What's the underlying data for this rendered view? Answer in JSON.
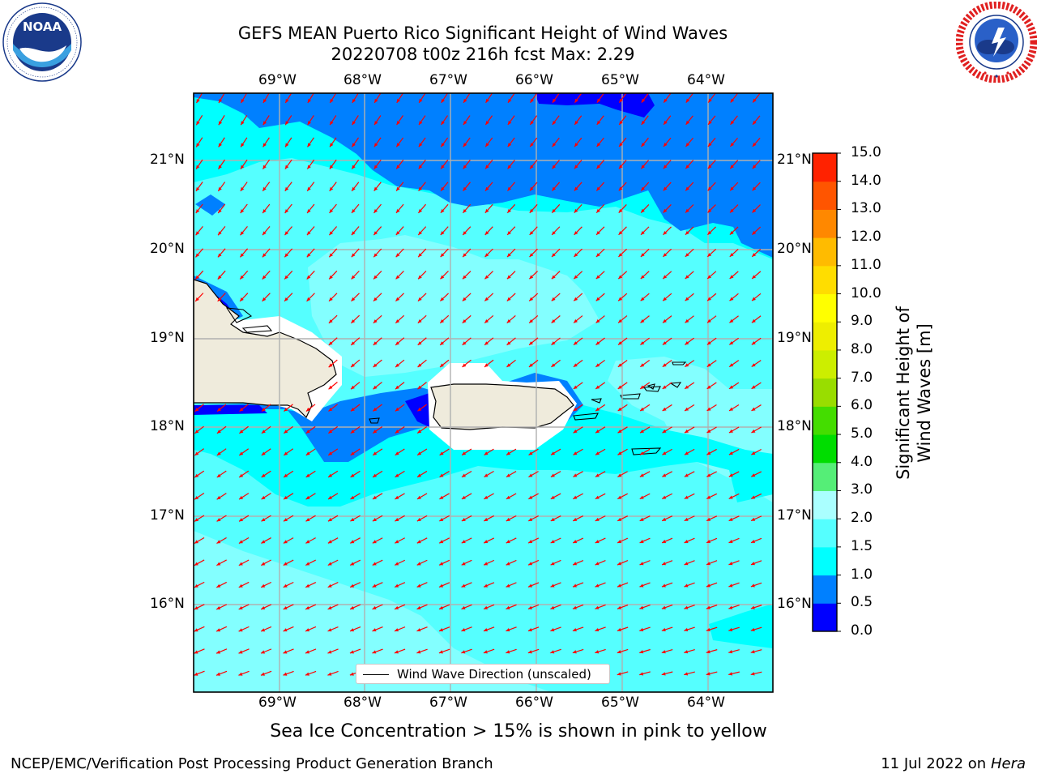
{
  "header": {
    "title_line1": "GEFS MEAN Puerto Rico Significant Height of Wind Waves",
    "title_line2": "20220708 t00z 216h fcst   Max: 2.29"
  },
  "logos": {
    "left": "NOAA",
    "left_ring_text": "NATIONAL OCEANIC AND ATMOSPHERIC ADMINISTRATION · U.S. DEPARTMENT OF COMMERCE",
    "right_ring_text": "NATIONAL WEATHER SERVICE"
  },
  "map": {
    "lon_labels": [
      "69°W",
      "68°W",
      "67°W",
      "66°W",
      "65°W",
      "64°W"
    ],
    "lat_labels": [
      "21°N",
      "20°N",
      "19°N",
      "18°N",
      "17°N",
      "16°N"
    ],
    "legend_label": "Wind Wave Direction (unscaled)",
    "arrow_color": "#ff0000",
    "land_color": "#efebdc",
    "coast_color": "#000000"
  },
  "colorbar": {
    "title": "Significant Height of Wind Waves [m]",
    "tick_labels": [
      "0.0",
      "0.5",
      "1.0",
      "1.5",
      "2.0",
      "3.0",
      "4.0",
      "5.0",
      "6.0",
      "7.0",
      "8.0",
      "9.0",
      "10.0",
      "11.0",
      "12.0",
      "13.0",
      "14.0",
      "15.0"
    ],
    "colors": [
      "#0000ff",
      "#0080ff",
      "#00ffff",
      "#55ffff",
      "#aaffff",
      "#55ee77",
      "#00dd00",
      "#44dd00",
      "#99dd00",
      "#ccee00",
      "#eeee00",
      "#ffff00",
      "#ffdd00",
      "#ffbb00",
      "#ff8800",
      "#ff5500",
      "#ff2200"
    ]
  },
  "footer": {
    "note": "Sea Ice Concentration > 15% is shown in pink to yellow",
    "branch": "NCEP/EMC/Verification Post Processing Product Generation Branch",
    "date": "11 Jul 2022 on",
    "machine": "Hera"
  }
}
